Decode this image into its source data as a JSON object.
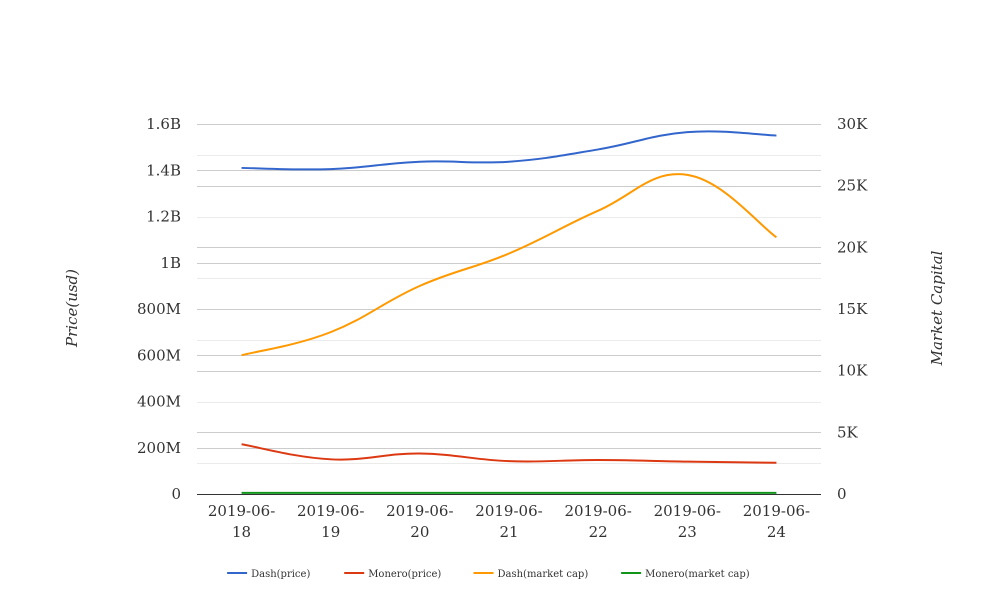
{
  "chart_data": {
    "type": "line",
    "categories": [
      "2019-06-18",
      "2019-06-19",
      "2019-06-20",
      "2019-06-21",
      "2019-06-22",
      "2019-06-23",
      "2019-06-24"
    ],
    "x_tick_lines": [
      [
        "2019-06-",
        "18"
      ],
      [
        "2019-06-",
        "19"
      ],
      [
        "2019-06-",
        "20"
      ],
      [
        "2019-06-",
        "21"
      ],
      [
        "2019-06-",
        "22"
      ],
      [
        "2019-06-",
        "23"
      ],
      [
        "2019-06-",
        "24"
      ]
    ],
    "y_left": {
      "label": "Price(usd)",
      "ylim": [
        0,
        1600000000
      ],
      "ticks": [
        0,
        200000000,
        400000000,
        600000000,
        800000000,
        1000000000,
        1200000000,
        1400000000,
        1600000000
      ],
      "tick_labels": [
        "0",
        "200M",
        "400M",
        "600M",
        "800M",
        "1B",
        "1.2B",
        "1.4B",
        "1.6B"
      ]
    },
    "y_right": {
      "label": "Market Capital",
      "ylim": [
        0,
        30000
      ],
      "ticks": [
        0,
        5000,
        10000,
        15000,
        20000,
        25000,
        30000
      ],
      "tick_labels": [
        "0",
        "5K",
        "10K",
        "15K",
        "20K",
        "25K",
        "30K"
      ]
    },
    "series": [
      {
        "name": "Dash(price)",
        "axis": "left",
        "color": "#3366cc",
        "values": [
          1410000000,
          1405000000,
          1437000000,
          1437000000,
          1490000000,
          1565000000,
          1550000000
        ]
      },
      {
        "name": "Monero(price)",
        "axis": "left",
        "color": "#dc3912",
        "values": [
          215000000,
          150000000,
          175000000,
          142000000,
          147000000,
          140000000,
          135000000
        ]
      },
      {
        "name": "Dash(market cap)",
        "axis": "left",
        "color": "#ff9900",
        "values": [
          600000000,
          700000000,
          900000000,
          1040000000,
          1225000000,
          1380000000,
          1110000000
        ]
      },
      {
        "name": "Monero(market cap)",
        "axis": "left",
        "color": "#109618",
        "values": [
          5000000,
          5000000,
          5000000,
          5000000,
          5000000,
          5000000,
          5000000
        ]
      }
    ],
    "grid": true,
    "legend_position": "bottom"
  }
}
